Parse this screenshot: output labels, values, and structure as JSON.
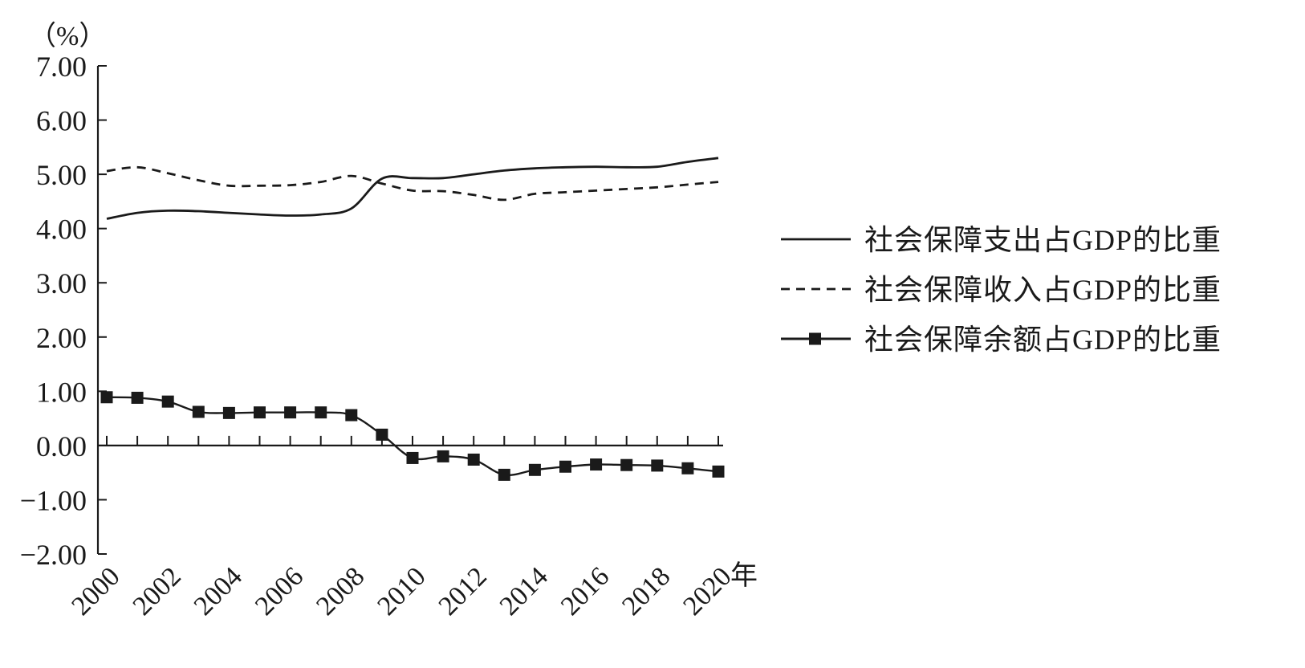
{
  "chart_data": {
    "type": "line",
    "y_unit": "（%）",
    "x_unit": "年",
    "ylim": [
      -2,
      7
    ],
    "y_ticks": [
      "7.00",
      "6.00",
      "5.00",
      "4.00",
      "3.00",
      "2.00",
      "1.00",
      "0.00",
      "−1.00",
      "−2.00"
    ],
    "y_tick_values": [
      7,
      6,
      5,
      4,
      3,
      2,
      1,
      0,
      -1,
      -2
    ],
    "x_ticks": [
      "2000",
      "2002",
      "2004",
      "2006",
      "2008",
      "2010",
      "2012",
      "2014",
      "2016",
      "2018",
      "2020"
    ],
    "x_tick_values": [
      2000,
      2002,
      2004,
      2006,
      2008,
      2010,
      2012,
      2014,
      2016,
      2018,
      2020
    ],
    "xlim": [
      2000,
      2020
    ],
    "legend_position": "right",
    "grid": false,
    "series": [
      {
        "name": "社会保障支出占GDP的比重",
        "style": "solid",
        "x": [
          2000,
          2001,
          2002,
          2003,
          2004,
          2005,
          2006,
          2007,
          2008,
          2009,
          2010,
          2011,
          2012,
          2013,
          2014,
          2015,
          2016,
          2017,
          2018,
          2019,
          2020
        ],
        "values": [
          4.18,
          4.29,
          4.33,
          4.32,
          4.29,
          4.26,
          4.24,
          4.26,
          4.37,
          4.92,
          4.93,
          4.93,
          5.0,
          5.07,
          5.11,
          5.13,
          5.14,
          5.13,
          5.14,
          5.23,
          5.3
        ]
      },
      {
        "name": "社会保障收入占GDP的比重",
        "style": "dashed",
        "x": [
          2000,
          2001,
          2002,
          2003,
          2004,
          2005,
          2006,
          2007,
          2008,
          2009,
          2010,
          2011,
          2012,
          2013,
          2014,
          2015,
          2016,
          2017,
          2018,
          2019,
          2020
        ],
        "values": [
          5.06,
          5.13,
          5.02,
          4.89,
          4.79,
          4.79,
          4.8,
          4.86,
          4.97,
          4.83,
          4.7,
          4.69,
          4.62,
          4.53,
          4.64,
          4.67,
          4.7,
          4.73,
          4.76,
          4.81,
          4.86
        ]
      },
      {
        "name": "社会保障余额占GDP的比重",
        "style": "marker",
        "x": [
          2000,
          2001,
          2002,
          2003,
          2004,
          2005,
          2006,
          2007,
          2008,
          2009,
          2010,
          2011,
          2012,
          2013,
          2014,
          2015,
          2016,
          2017,
          2018,
          2019,
          2020
        ],
        "values": [
          0.89,
          0.88,
          0.81,
          0.62,
          0.6,
          0.61,
          0.61,
          0.61,
          0.56,
          0.2,
          -0.23,
          -0.2,
          -0.26,
          -0.54,
          -0.45,
          -0.39,
          -0.35,
          -0.36,
          -0.37,
          -0.42,
          -0.48
        ]
      }
    ]
  }
}
